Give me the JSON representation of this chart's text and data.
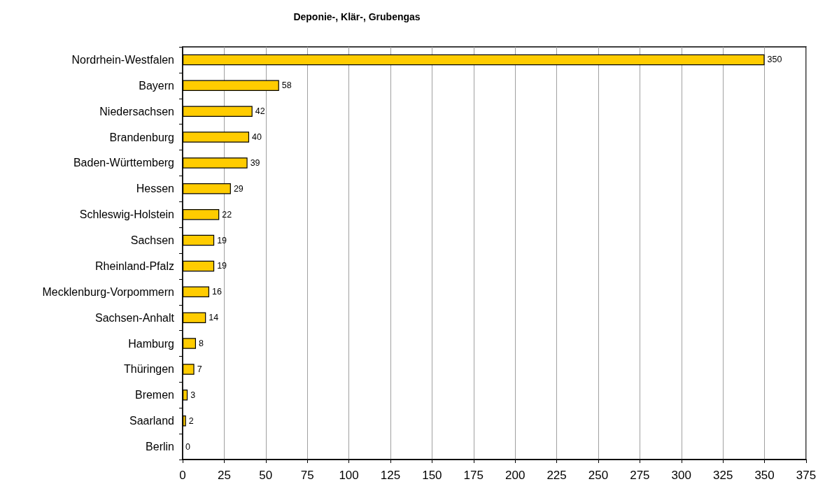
{
  "chart_data": {
    "type": "bar",
    "orientation": "horizontal",
    "title": "Deponie-, Klär-, Grubengas",
    "categories": [
      "Nordrhein-Westfalen",
      "Bayern",
      "Niedersachsen",
      "Brandenburg",
      "Baden-Württemberg",
      "Hessen",
      "Schleswig-Holstein",
      "Sachsen",
      "Rheinland-Pfalz",
      "Mecklenburg-Vorpommern",
      "Sachsen-Anhalt",
      "Hamburg",
      "Thüringen",
      "Bremen",
      "Saarland",
      "Berlin"
    ],
    "values": [
      350,
      58,
      42,
      40,
      39,
      29,
      22,
      19,
      19,
      16,
      14,
      8,
      7,
      3,
      2,
      0
    ],
    "color": "#ffcc00",
    "xlim": [
      0,
      375
    ],
    "xticks": [
      0,
      25,
      50,
      75,
      100,
      125,
      150,
      175,
      200,
      225,
      250,
      275,
      300,
      325,
      350,
      375
    ],
    "grid": "x",
    "data_labels": true
  }
}
